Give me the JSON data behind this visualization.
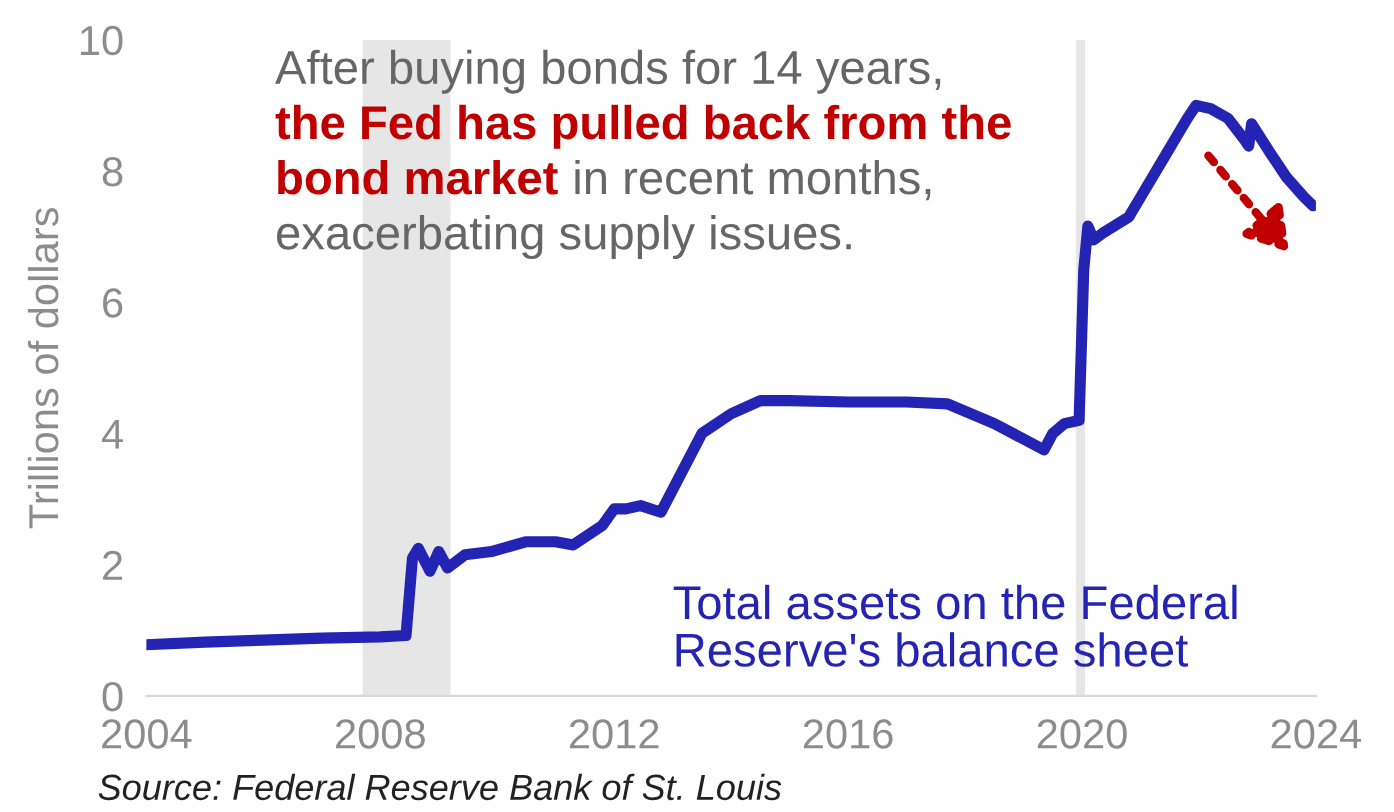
{
  "chart_data": {
    "type": "line",
    "ylabel": "Trillions of dollars",
    "xlim": [
      2004,
      2024
    ],
    "xticks": [
      2004,
      2008,
      2012,
      2016,
      2020,
      2024
    ],
    "ylim": [
      0,
      10
    ],
    "yticks": [
      0,
      2,
      4,
      6,
      8,
      10
    ],
    "grid": false,
    "legend": false,
    "bands": [
      {
        "axis": "x",
        "from": 2007.7,
        "to": 2009.2,
        "color": "#e6e6e6"
      },
      {
        "axis": "x",
        "from": 2019.9,
        "to": 2020.05,
        "color": "#e6e6e6"
      }
    ],
    "annotations": [
      "After buying bonds for 14 years,",
      "the Fed has pulled back from the",
      "bond market",
      "in recent months,",
      "exacerbating supply issues.",
      "Source: Federal Reserve Bank of St. Louis"
    ],
    "series": [
      {
        "name": "Total assets on the Federal\nReserve's balance sheet",
        "color": "#2424b4",
        "x": [
          2004.0,
          2005.0,
          2006.0,
          2007.0,
          2008.0,
          2008.44,
          2008.55,
          2008.65,
          2008.85,
          2009.0,
          2009.15,
          2009.3,
          2009.45,
          2009.9,
          2010.5,
          2011.0,
          2011.3,
          2011.8,
          2012.0,
          2012.2,
          2012.45,
          2012.8,
          2013.5,
          2014.0,
          2014.5,
          2015.0,
          2016.0,
          2017.0,
          2017.7,
          2018.5,
          2019.35,
          2019.5,
          2019.7,
          2019.95,
          2020.03,
          2020.1,
          2020.2,
          2020.35,
          2020.8,
          2021.0,
          2021.4,
          2021.8,
          2021.95,
          2022.2,
          2022.5,
          2022.8,
          2022.85,
          2022.9,
          2023.2,
          2023.5,
          2023.8,
          2023.95
        ],
        "values": [
          0.78,
          0.82,
          0.85,
          0.88,
          0.9,
          0.92,
          2.1,
          2.25,
          1.9,
          2.2,
          1.95,
          2.05,
          2.15,
          2.2,
          2.35,
          2.35,
          2.3,
          2.6,
          2.85,
          2.85,
          2.9,
          2.8,
          4.0,
          4.3,
          4.5,
          4.5,
          4.48,
          4.48,
          4.45,
          4.15,
          3.75,
          4.0,
          4.15,
          4.2,
          6.5,
          7.16,
          6.95,
          7.05,
          7.3,
          7.6,
          8.2,
          8.8,
          9.0,
          8.95,
          8.8,
          8.45,
          8.38,
          8.72,
          8.3,
          7.9,
          7.6,
          7.47
        ]
      }
    ]
  }
}
